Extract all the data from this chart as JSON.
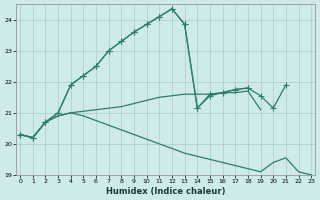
{
  "xlabel": "Humidex (Indice chaleur)",
  "bg_color": "#ceeaea",
  "grid_color": "#adc8c8",
  "line_color": "#2e7d6e",
  "xlim": [
    0,
    23
  ],
  "ylim": [
    19,
    24.5
  ],
  "yticks": [
    19,
    20,
    21,
    22,
    23,
    24
  ],
  "xticks": [
    0,
    1,
    2,
    3,
    4,
    5,
    6,
    7,
    8,
    9,
    10,
    11,
    12,
    13,
    14,
    15,
    16,
    17,
    18,
    19,
    20,
    21,
    22,
    23
  ],
  "line_main_markers": {
    "x": [
      0,
      1,
      2,
      3,
      4,
      5,
      6,
      7,
      8,
      9,
      10,
      11,
      12,
      13,
      14,
      15,
      16,
      17,
      18
    ],
    "y": [
      20.3,
      20.2,
      20.7,
      21.0,
      21.9,
      22.2,
      22.5,
      23.0,
      23.3,
      23.6,
      23.85,
      24.1,
      24.35,
      23.85,
      21.15,
      21.6,
      21.65,
      21.75,
      21.8
    ]
  },
  "line_secondary_markers": {
    "x": [
      0,
      1,
      2,
      3,
      4,
      5,
      6,
      7,
      8,
      9,
      10,
      11,
      12,
      13,
      14,
      15,
      16,
      17,
      18,
      19,
      20,
      21
    ],
    "y": [
      20.3,
      20.2,
      20.7,
      21.0,
      21.9,
      22.2,
      22.5,
      23.0,
      23.3,
      23.6,
      23.85,
      24.1,
      24.35,
      23.85,
      21.15,
      21.55,
      21.65,
      21.75,
      21.8,
      21.55,
      21.15,
      21.9
    ]
  },
  "line_flat_upper": {
    "x": [
      0,
      1,
      2,
      3,
      4,
      5,
      6,
      7,
      8,
      9,
      10,
      11,
      12,
      13,
      14,
      15,
      16,
      17,
      18,
      19
    ],
    "y": [
      20.3,
      20.2,
      20.7,
      20.9,
      21.0,
      21.05,
      21.1,
      21.15,
      21.2,
      21.3,
      21.4,
      21.5,
      21.55,
      21.6,
      21.6,
      21.6,
      21.65,
      21.65,
      21.7,
      21.1
    ]
  },
  "line_diagonal_down": {
    "x": [
      0,
      1,
      2,
      3,
      4,
      5,
      6,
      7,
      8,
      9,
      10,
      11,
      12,
      13,
      14,
      15,
      16,
      17,
      18,
      19,
      20,
      21,
      22,
      23
    ],
    "y": [
      20.3,
      20.2,
      20.7,
      20.9,
      21.0,
      20.9,
      20.75,
      20.6,
      20.45,
      20.3,
      20.15,
      20.0,
      19.85,
      19.7,
      19.6,
      19.5,
      19.4,
      19.3,
      19.2,
      19.1,
      19.4,
      19.55,
      19.1,
      19.0
    ]
  }
}
